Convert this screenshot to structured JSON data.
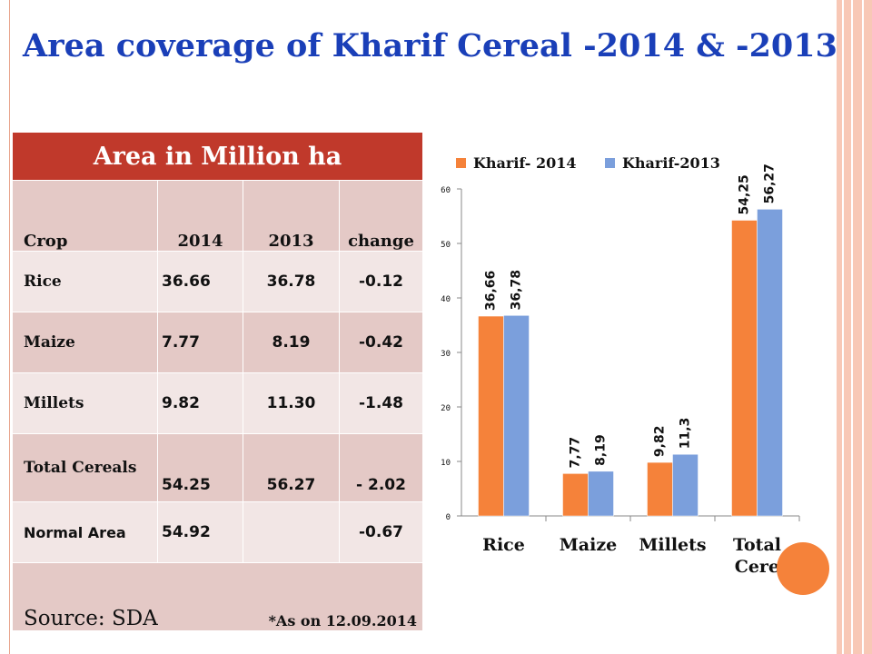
{
  "title": "Area coverage of Kharif Cereal -2014 & -2013",
  "table": {
    "header": "Area in Million ha",
    "columns": [
      "Crop",
      "2014",
      "2013",
      "change"
    ],
    "rows": [
      {
        "crop": "Rice",
        "y2014": "36.66",
        "y2013": "36.78",
        "change": "-0.12"
      },
      {
        "crop": "Maize",
        "y2014": "7.77",
        "y2013": "8.19",
        "change": "-0.42"
      },
      {
        "crop": "Millets",
        "y2014": "9.82",
        "y2013": "11.30",
        "change": "-1.48"
      },
      {
        "crop": "Total Cereals",
        "y2014": "54.25",
        "y2013": "56.27",
        "change": "- 2.02"
      },
      {
        "crop": "Normal Area",
        "y2014": "54.92",
        "y2013": "",
        "change": "-0.67"
      }
    ],
    "source": "Source: SDA",
    "as_on": "*As on 12.09.2014"
  },
  "chart_data": {
    "type": "bar",
    "categories": [
      "Rice",
      "Maize",
      "Millets",
      "Total Cereals"
    ],
    "series": [
      {
        "name": "Kharif- 2014",
        "values": [
          36.66,
          7.77,
          9.82,
          54.25
        ],
        "labels": [
          "36,66",
          "7,77",
          "9,82",
          "54,25"
        ],
        "color": "#f5823a"
      },
      {
        "name": "Kharif-2013",
        "values": [
          36.78,
          8.19,
          11.3,
          56.27
        ],
        "labels": [
          "36,78",
          "8,19",
          "11,3",
          "56,27"
        ],
        "color": "#7b9fdc"
      }
    ],
    "ylim": [
      0,
      60
    ],
    "yticks": [
      0,
      10,
      20,
      30,
      40,
      50,
      60
    ],
    "legend": "top",
    "grid": false
  }
}
